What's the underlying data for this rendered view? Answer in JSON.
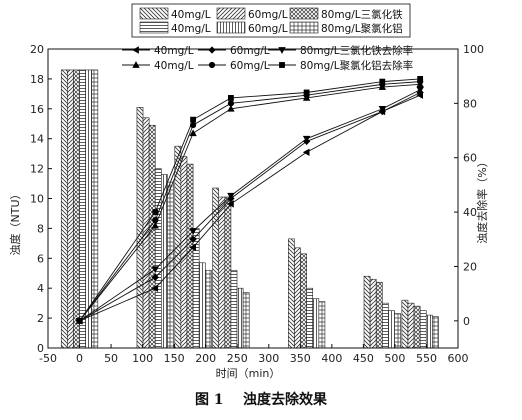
{
  "chart_data": {
    "type": "bar+line",
    "caption": "图 1    浊度去除效果",
    "xlabel": "时间（min）",
    "ylabel_left": "浊度（NTU）",
    "ylabel_right": "浊度去除率（%）",
    "xlim": [
      -50,
      600
    ],
    "ylim_left": [
      0,
      20
    ],
    "ylim_right": [
      -10,
      100
    ],
    "x_ticks": [
      -50,
      0,
      50,
      100,
      150,
      200,
      250,
      300,
      350,
      400,
      450,
      500,
      550,
      600
    ],
    "y_left_ticks": [
      0,
      2,
      4,
      6,
      8,
      10,
      12,
      14,
      16,
      18,
      20
    ],
    "y_right_ticks": [
      0,
      20,
      40,
      60,
      80,
      100
    ],
    "bar_times": [
      0,
      120,
      180,
      240,
      360,
      480,
      540
    ],
    "bar_series": [
      {
        "name": "40mg/L",
        "pattern": "diag-back",
        "values": [
          18.6,
          16.1,
          13.5,
          10.7,
          7.3,
          4.8,
          3.2
        ]
      },
      {
        "name": "60mg/L",
        "pattern": "diag-fwd",
        "values": [
          18.6,
          15.4,
          12.8,
          10.1,
          6.7,
          4.6,
          3.0
        ]
      },
      {
        "name": "80mg/L三氯化铁",
        "pattern": "crosshatch",
        "values": [
          18.6,
          14.9,
          12.3,
          10.1,
          6.3,
          4.4,
          2.8
        ]
      },
      {
        "name": "40mg/L",
        "pattern": "horiz",
        "values": [
          18.6,
          12.0,
          8.0,
          5.2,
          4.0,
          3.0,
          2.5
        ]
      },
      {
        "name": "60mg/L",
        "pattern": "vert",
        "values": [
          18.6,
          11.6,
          5.7,
          4.0,
          3.3,
          2.5,
          2.2
        ]
      },
      {
        "name": "80mg/L聚氯化铝",
        "pattern": "grid",
        "values": [
          18.6,
          11.1,
          5.2,
          3.7,
          3.1,
          2.3,
          2.1
        ]
      }
    ],
    "line_x": [
      0,
      120,
      180,
      240,
      360,
      480,
      540
    ],
    "line_series": [
      {
        "name": "40mg/L",
        "marker": "tri-left",
        "values": [
          0,
          12,
          27,
          43,
          62,
          77,
          83
        ]
      },
      {
        "name": "60mg/L",
        "marker": "diamond",
        "values": [
          0,
          16,
          30,
          45,
          66,
          77,
          84
        ]
      },
      {
        "name": "80mg/L三氯化铁去除率",
        "marker": "tri-down",
        "values": [
          0,
          19,
          33,
          46,
          67,
          78,
          85
        ]
      },
      {
        "name": "40mg/L",
        "marker": "tri-up",
        "values": [
          0,
          35,
          69,
          78,
          82,
          86,
          87
        ]
      },
      {
        "name": "60mg/L",
        "marker": "circle",
        "values": [
          0,
          37,
          72,
          80,
          83,
          87,
          88
        ]
      },
      {
        "name": "80mg/L聚氯化铝去除率",
        "marker": "square",
        "values": [
          0,
          40,
          74,
          82,
          84,
          88,
          89
        ]
      }
    ]
  }
}
